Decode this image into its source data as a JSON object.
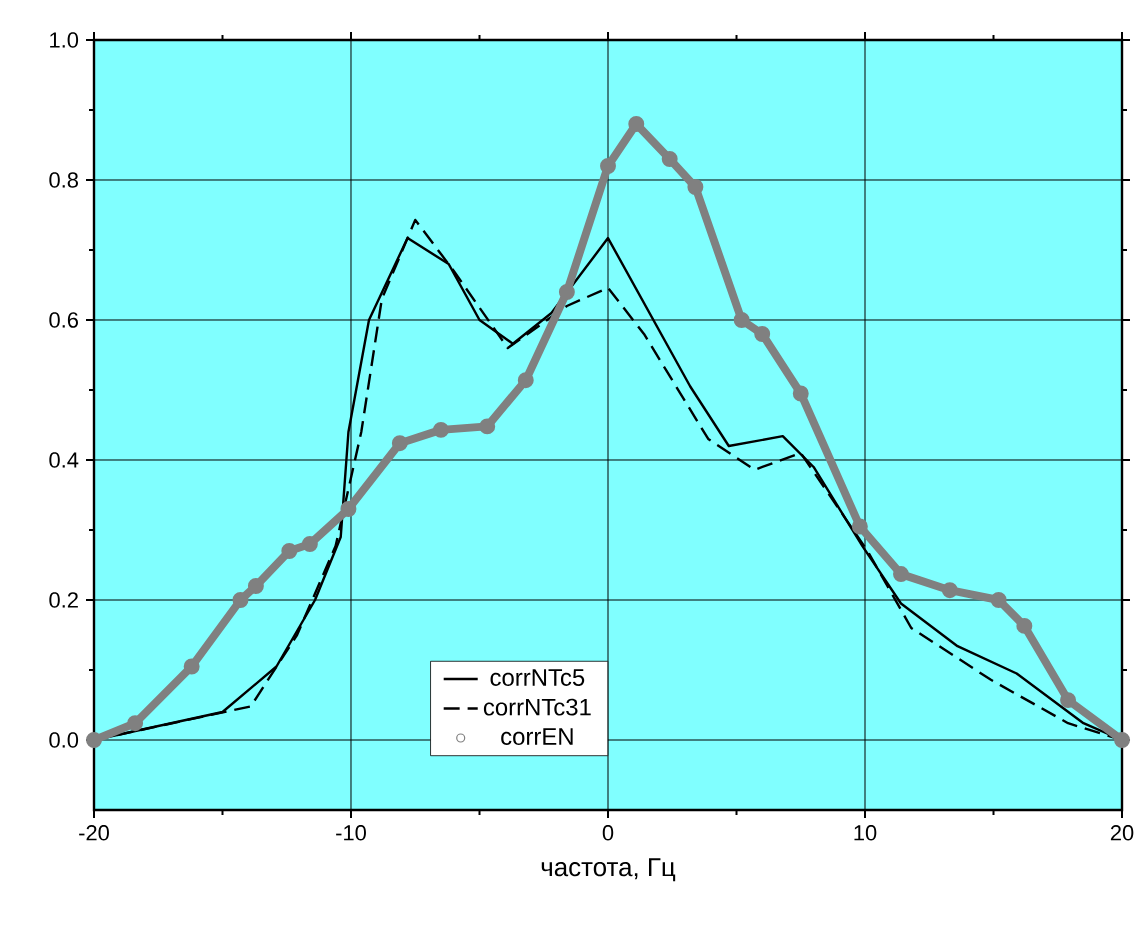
{
  "chart_data": {
    "type": "line",
    "xlabel": "частота, Гц",
    "xlim": [
      -20,
      20
    ],
    "ylim": [
      -0.1,
      1.0
    ],
    "xticks": [
      -20,
      -10,
      0,
      10,
      20
    ],
    "yticks": [
      {
        "value": 0,
        "label": "0.0"
      },
      {
        "value": 0.2,
        "label": "0.2"
      },
      {
        "value": 0.4,
        "label": "0.4"
      },
      {
        "value": 0.6,
        "label": "0.6"
      },
      {
        "value": 0.8,
        "label": "0.8"
      },
      {
        "value": 1.0,
        "label": "1.0"
      }
    ],
    "grid": true,
    "legend": "bottom",
    "series": [
      {
        "name": "corrNTc5",
        "color": "#000000",
        "line_style": "solid",
        "x": [
          -20,
          -15,
          -12.9,
          -11.4,
          -10.4,
          -10.1,
          -9.3,
          -7.8,
          -6.2,
          -5.0,
          -3.7,
          -2.2,
          0,
          3.2,
          4.7,
          6.8,
          8.0,
          9.9,
          11.4,
          13.6,
          15.9,
          18.5,
          20
        ],
        "values": [
          0,
          0.04,
          0.105,
          0.2,
          0.29,
          0.44,
          0.6,
          0.717,
          0.68,
          0.6,
          0.566,
          0.61,
          0.717,
          0.505,
          0.42,
          0.434,
          0.39,
          0.277,
          0.195,
          0.134,
          0.095,
          0.024,
          0
        ]
      },
      {
        "name": "corrNTc31",
        "color": "#000000",
        "line_style": "dashed",
        "x": [
          -20,
          -13.9,
          -12.1,
          -10.6,
          -9.6,
          -8.8,
          -7.5,
          -6.0,
          -3.9,
          -1.6,
          0,
          1.4,
          3.9,
          5.7,
          7.5,
          10.1,
          11.8,
          14.9,
          17.9,
          20
        ],
        "values": [
          0,
          0.048,
          0.15,
          0.277,
          0.44,
          0.63,
          0.743,
          0.67,
          0.56,
          0.62,
          0.646,
          0.58,
          0.43,
          0.386,
          0.41,
          0.27,
          0.16,
          0.086,
          0.024,
          0
        ]
      },
      {
        "name": "corrEN",
        "color": "#808080",
        "marker": "circle",
        "x": [
          -20,
          -18.4,
          -16.2,
          -14.3,
          -13.7,
          -12.4,
          -11.6,
          -10.1,
          -8.1,
          -6.5,
          -4.7,
          -3.2,
          -1.6,
          0,
          1.1,
          2.4,
          3.4,
          5.2,
          6.0,
          7.5,
          9.8,
          11.4,
          13.3,
          15.2,
          16.2,
          17.9,
          20
        ],
        "values": [
          0,
          0.024,
          0.105,
          0.2,
          0.22,
          0.27,
          0.28,
          0.33,
          0.424,
          0.443,
          0.448,
          0.514,
          0.64,
          0.82,
          0.88,
          0.83,
          0.79,
          0.6,
          0.58,
          0.495,
          0.305,
          0.237,
          0.214,
          0.2,
          0.163,
          0.057,
          0
        ]
      }
    ]
  }
}
